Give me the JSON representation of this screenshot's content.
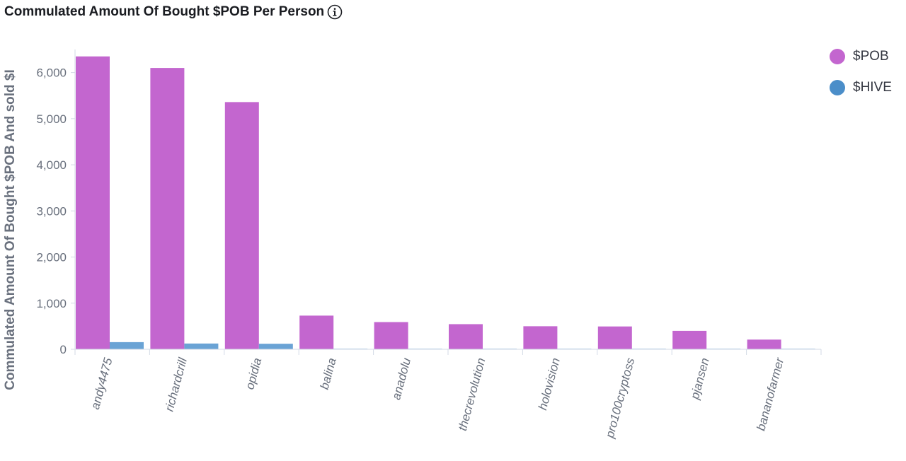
{
  "header": {
    "title": "Commulated Amount Of Bought $POB Per Person",
    "info_icon": "info-circle-icon"
  },
  "legend": {
    "items": [
      {
        "label": "$POB",
        "color": "#c366cf"
      },
      {
        "label": "$HIVE",
        "color": "#4b8ec9"
      }
    ]
  },
  "chart_data": {
    "type": "bar",
    "title": "Commulated Amount Of Bought $POB Per Person",
    "ylabel": "Commulated Amount Of Bought $POB And sold $I",
    "xlabel": "",
    "ylim": [
      0,
      6500
    ],
    "yticks": [
      0,
      1000,
      2000,
      3000,
      4000,
      5000,
      6000
    ],
    "ytick_labels": [
      "0",
      "1,000",
      "2,000",
      "3,000",
      "4,000",
      "5,000",
      "6,000"
    ],
    "categories": [
      "andy4475",
      "richardcrill",
      "opidia",
      "balina",
      "anadolu",
      "thecrevolution",
      "holovision",
      "pro100cryptoss",
      "pjansen",
      "bananofarmer"
    ],
    "series": [
      {
        "name": "$POB",
        "color": "#c366cf",
        "values": [
          6350,
          6100,
          5360,
          730,
          590,
          545,
          500,
          495,
          400,
          210
        ]
      },
      {
        "name": "$HIVE",
        "color": "#6aa3d5",
        "values": [
          155,
          125,
          120,
          12,
          8,
          8,
          6,
          5,
          4,
          3
        ]
      }
    ],
    "grid": false,
    "legend_position": "top-right"
  }
}
